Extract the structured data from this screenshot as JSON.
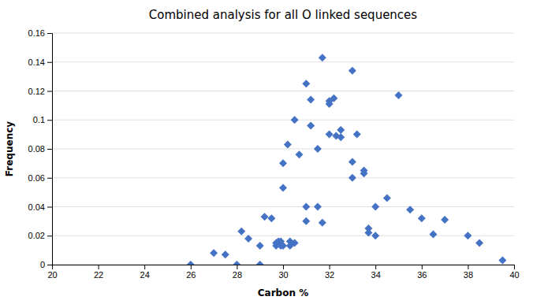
{
  "chart_data": {
    "type": "scatter",
    "title": "Combined analysis for all O linked sequences",
    "xlabel": "Carbon %",
    "ylabel": "Frequency",
    "xlim": [
      20,
      40
    ],
    "ylim": [
      0,
      0.16
    ],
    "xticks": [
      20,
      22,
      24,
      26,
      28,
      30,
      32,
      34,
      36,
      38,
      40
    ],
    "yticks": [
      0,
      0.02,
      0.04,
      0.06,
      0.08,
      0.1,
      0.12,
      0.14,
      0.16
    ],
    "color": "#4472C4",
    "marker": "diamond",
    "grid": "y",
    "x": [
      26.0,
      27.0,
      27.5,
      28.0,
      28.2,
      28.5,
      29.0,
      29.0,
      29.2,
      29.5,
      29.7,
      29.7,
      29.8,
      29.8,
      29.9,
      29.9,
      30.0,
      30.0,
      30.0,
      30.2,
      30.3,
      30.3,
      30.5,
      30.5,
      30.7,
      31.0,
      31.0,
      31.0,
      31.2,
      31.2,
      31.5,
      31.5,
      31.7,
      31.7,
      32.0,
      32.0,
      32.0,
      32.2,
      32.3,
      32.5,
      32.5,
      33.0,
      33.0,
      33.0,
      33.2,
      33.5,
      33.5,
      33.7,
      33.7,
      34.0,
      34.0,
      34.5,
      35.0,
      35.5,
      36.0,
      36.5,
      37.0,
      38.0,
      38.5,
      39.5
    ],
    "values": [
      0.0,
      0.008,
      0.007,
      0.0,
      0.023,
      0.018,
      0.0,
      0.013,
      0.033,
      0.032,
      0.013,
      0.015,
      0.015,
      0.016,
      0.013,
      0.016,
      0.07,
      0.053,
      0.013,
      0.083,
      0.013,
      0.016,
      0.1,
      0.015,
      0.076,
      0.125,
      0.03,
      0.04,
      0.114,
      0.096,
      0.08,
      0.04,
      0.143,
      0.029,
      0.113,
      0.111,
      0.09,
      0.115,
      0.089,
      0.093,
      0.088,
      0.134,
      0.06,
      0.071,
      0.09,
      0.063,
      0.065,
      0.025,
      0.022,
      0.04,
      0.02,
      0.046,
      0.117,
      0.038,
      0.032,
      0.021,
      0.031,
      0.02,
      0.015,
      0.003
    ]
  }
}
